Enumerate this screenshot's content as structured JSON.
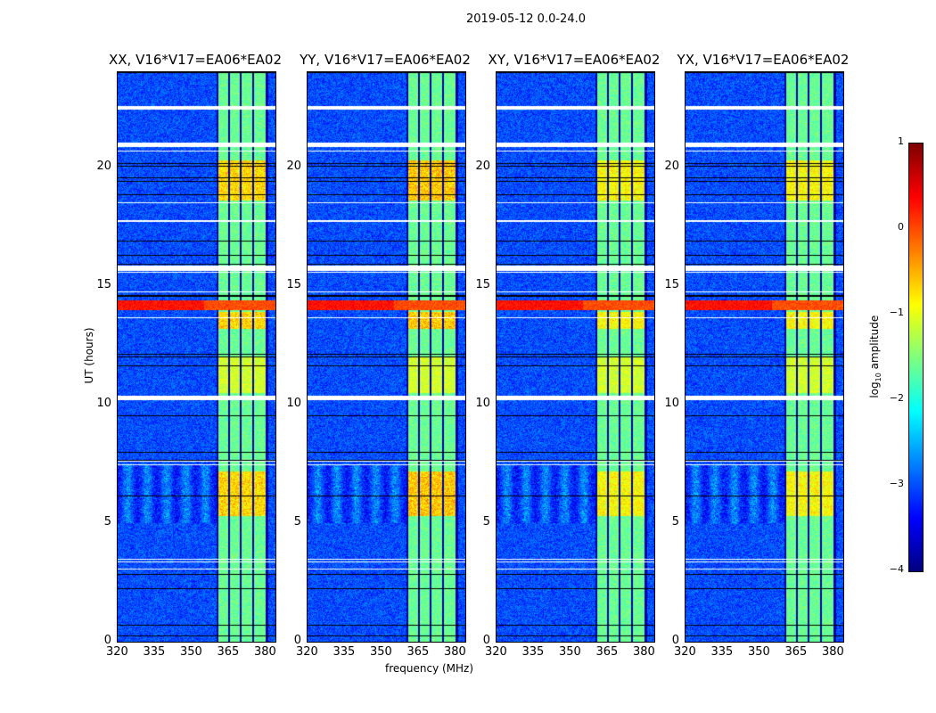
{
  "chart_data": {
    "type": "heatmap",
    "title": "2019-05-12 0.0-24.0",
    "xlabel": "frequency (MHz)",
    "ylabel": "UT (hours)",
    "xlim": [
      320,
      384
    ],
    "ylim": [
      0,
      24
    ],
    "xticks": [
      "320",
      "335",
      "350",
      "365",
      "380"
    ],
    "xtick_values": [
      320,
      335,
      350,
      365,
      380
    ],
    "yticks": [
      "0",
      "5",
      "10",
      "15",
      "20"
    ],
    "ytick_values": [
      0,
      5,
      10,
      15,
      20
    ],
    "panels": [
      {
        "title": "XX, V16*V17=EA06*EA02",
        "hot_scale": 1.0
      },
      {
        "title": "YY, V16*V17=EA06*EA02",
        "hot_scale": 1.1
      },
      {
        "title": "XY, V16*V17=EA06*EA02",
        "hot_scale": 0.8
      },
      {
        "title": "YX, V16*V17=EA06*EA02",
        "hot_scale": 0.8
      }
    ],
    "colorbar": {
      "label": "log10 amplitude",
      "label_main": "log",
      "label_sub": "10",
      "label_tail": " amplitude",
      "range": [
        -4,
        1
      ],
      "ticks": [
        "1",
        "0",
        "−1",
        "−2",
        "−3",
        "−4"
      ],
      "tick_values": [
        1,
        0,
        -1,
        -2,
        -3,
        -4
      ],
      "colormap": "jet"
    },
    "background_level": -3,
    "rfi_subbands_mhz": [
      [
        360.5,
        364.5
      ],
      [
        365.2,
        369.5
      ],
      [
        370.2,
        374.5
      ],
      [
        375.2,
        380
      ]
    ],
    "flagged_hours": [
      [
        22.45,
        22.6
      ],
      [
        20.85,
        21.05
      ],
      [
        15.65,
        15.85
      ],
      [
        10.2,
        10.4
      ],
      [
        7.45,
        7.5
      ],
      [
        3.35,
        3.4
      ],
      [
        3.05,
        3.1
      ]
    ],
    "rfi_intense_hours": [
      [
        14.0,
        14.4
      ],
      [
        5.3,
        7.2
      ],
      [
        18.6,
        20.3
      ],
      [
        13.2,
        13.9
      ]
    ]
  }
}
